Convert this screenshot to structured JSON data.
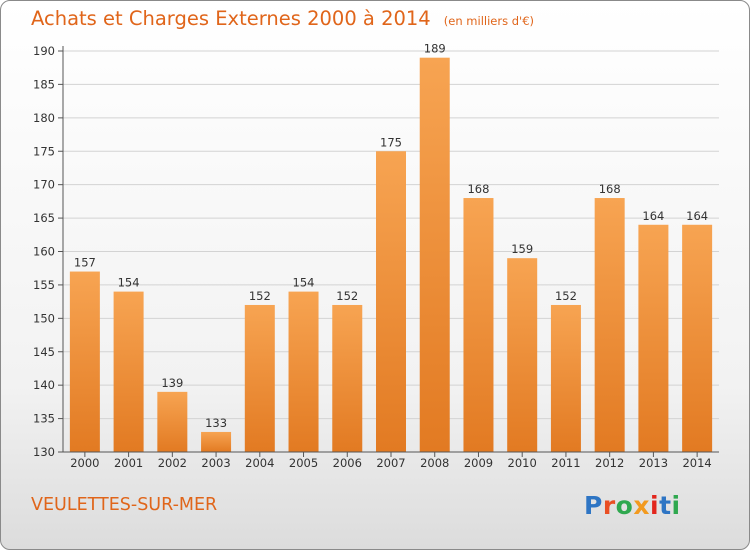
{
  "title": "Achats et Charges Externes 2000 à 2014",
  "unit": "(en milliers d'€)",
  "location": "VEULETTES-SUR-MER",
  "brand": {
    "text": "Proxiti",
    "colors": [
      "#2e75c4",
      "#e94f24",
      "#2fa84f",
      "#f29a1f",
      "#e2261d",
      "#2e75c4",
      "#2fa84f"
    ]
  },
  "colors": {
    "bar_light": "#f7a452",
    "bar_dark": "#e27a22",
    "axis": "#555555",
    "grid": "#d3d3d3",
    "text": "#333333"
  },
  "chart_data": {
    "type": "bar",
    "title": "Achats et Charges Externes 2000 à 2014",
    "xlabel": "",
    "ylabel": "",
    "categories": [
      "2000",
      "2001",
      "2002",
      "2003",
      "2004",
      "2005",
      "2006",
      "2007",
      "2008",
      "2009",
      "2010",
      "2011",
      "2012",
      "2013",
      "2014"
    ],
    "values": [
      157,
      154,
      139,
      133,
      152,
      154,
      152,
      175,
      189,
      168,
      159,
      152,
      168,
      164,
      164
    ],
    "ylim": [
      130,
      190
    ],
    "yticks": [
      130,
      135,
      140,
      145,
      150,
      155,
      160,
      165,
      170,
      175,
      180,
      185,
      190
    ],
    "grid": true,
    "legend": "none"
  }
}
